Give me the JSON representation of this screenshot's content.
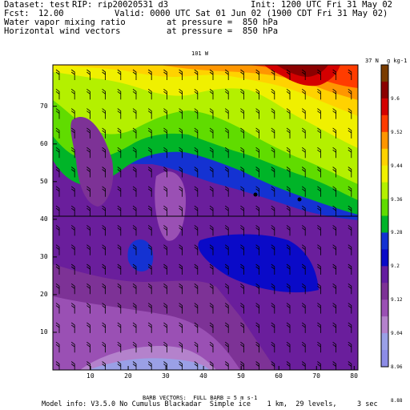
{
  "header": {
    "dataset_label": "Dataset: test",
    "rip_label": "RIP: rip20020531 d3",
    "init_label": "Init: 1200 UTC Fri 31 May 02",
    "fcst_label": "Fcst:",
    "fcst_value": "12.00",
    "valid_label": "Valid: 0000 UTC Sat 01 Jun 02 (1900 CDT Fri 31 May 02)",
    "field1_name": "Water vapor mixing ratio",
    "field1_level": "at pressure =  850 hPa",
    "field2_name": "Horizontal wind vectors",
    "field2_level": "at pressure =  850 hPa"
  },
  "map": {
    "top_left_label": "101 W",
    "top_right_label": "37 N",
    "x_ticks": [
      "10",
      "20",
      "30",
      "40",
      "50",
      "60",
      "70",
      "80"
    ],
    "y_ticks": [
      "10",
      "20",
      "30",
      "40",
      "50",
      "60",
      "70"
    ]
  },
  "colorbar": {
    "unit_label": "g kg-1",
    "labels": [
      "9.6",
      "9.52",
      "9.44",
      "9.36",
      "9.28",
      "9.2",
      "9.12",
      "9.04",
      "8.96",
      "8.88"
    ],
    "colors": [
      "#7a3c00",
      "#8b0000",
      "#d40000",
      "#ff3c00",
      "#ff9600",
      "#ffd200",
      "#f0f000",
      "#b4f000",
      "#60dc00",
      "#00b428",
      "#1432d2",
      "#0a0ac8",
      "#641ea0",
      "#7d3296",
      "#9a50b4",
      "#b482cc",
      "#9aa0e6",
      "#8c8ce6"
    ]
  },
  "footer": {
    "barb_line": "BARB VECTORS:  FULL BARB = 5 m s-1",
    "model_line": "Model info: V3.5.0 No Cumulus Blackadar  Simple ice    1 km,  29 levels,     3 sec"
  }
}
